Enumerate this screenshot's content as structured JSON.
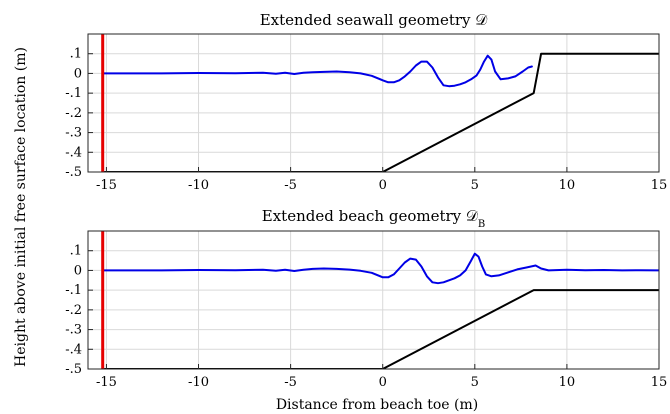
{
  "figure": {
    "ylabel": "Height above initial free surface location (m)",
    "xlabel": "Distance from beach toe (m)"
  },
  "chart_data": [
    {
      "type": "line",
      "title": "Extended seawall geometry 𝒟",
      "xlim": [
        -16,
        15
      ],
      "ylim": [
        -0.5,
        0.2
      ],
      "xticks": [
        -15,
        -10,
        -5,
        0,
        5,
        10,
        15
      ],
      "yticks": [
        0.1,
        0,
        -0.1,
        -0.2,
        -0.3,
        -0.4,
        -0.5
      ],
      "grid": true,
      "series": [
        {
          "color": "#0000e6",
          "x": [
            -15.2,
            -12,
            -10,
            -8,
            -6.5,
            -5.8,
            -5.3,
            -4.8,
            -4.3,
            -3.8,
            -3.2,
            -2.5,
            -1.8,
            -1.2,
            -0.6,
            0,
            0.3,
            0.6,
            0.9,
            1.2,
            1.5,
            1.8,
            2.1,
            2.4,
            2.7,
            3.0,
            3.3,
            3.6,
            3.9,
            4.2,
            4.5,
            4.8,
            5.1,
            5.3,
            5.5,
            5.7,
            5.9,
            6.1,
            6.4,
            6.8,
            7.2,
            7.6,
            7.9,
            8.1
          ],
          "y": [
            0,
            0,
            0.002,
            0.001,
            0.003,
            -0.002,
            0.003,
            -0.003,
            0.003,
            0.006,
            0.008,
            0.01,
            0.006,
            0.0,
            -0.012,
            -0.035,
            -0.045,
            -0.045,
            -0.035,
            -0.015,
            0.01,
            0.04,
            0.06,
            0.06,
            0.03,
            -0.02,
            -0.06,
            -0.065,
            -0.062,
            -0.055,
            -0.045,
            -0.03,
            -0.01,
            0.02,
            0.06,
            0.09,
            0.07,
            0.01,
            -0.03,
            -0.025,
            -0.015,
            0.01,
            0.03,
            0.035
          ]
        },
        {
          "color": "#000000",
          "x": [
            -15.1,
            0,
            8.2,
            8.6,
            15
          ],
          "y": [
            -0.5,
            -0.5,
            -0.1,
            0.1,
            0.1
          ]
        },
        {
          "color": "#e60000",
          "x": [
            -15.2,
            -15.2
          ],
          "y": [
            -0.5,
            0.2
          ]
        }
      ]
    },
    {
      "type": "line",
      "title": "Extended beach geometry 𝒟",
      "title_subscript": "B",
      "xlim": [
        -16,
        15
      ],
      "ylim": [
        -0.5,
        0.2
      ],
      "xticks": [
        -15,
        -10,
        -5,
        0,
        5,
        10,
        15
      ],
      "yticks": [
        0.1,
        0,
        -0.1,
        -0.2,
        -0.3,
        -0.4,
        -0.5
      ],
      "grid": true,
      "series": [
        {
          "color": "#0000e6",
          "x": [
            -15.2,
            -12,
            -10,
            -8,
            -6.5,
            -5.8,
            -5.3,
            -4.8,
            -4.3,
            -3.8,
            -3.2,
            -2.5,
            -1.8,
            -1.2,
            -0.6,
            0,
            0.3,
            0.6,
            0.9,
            1.2,
            1.5,
            1.8,
            2.1,
            2.4,
            2.7,
            3.0,
            3.3,
            3.6,
            3.9,
            4.2,
            4.5,
            4.8,
            5.0,
            5.2,
            5.4,
            5.6,
            5.9,
            6.3,
            6.8,
            7.3,
            7.8,
            8.3,
            8.6,
            9.0,
            10,
            11,
            12,
            13,
            14,
            15
          ],
          "y": [
            0,
            0,
            0.002,
            0.001,
            0.003,
            -0.002,
            0.003,
            -0.003,
            0.003,
            0.008,
            0.01,
            0.008,
            0.004,
            -0.002,
            -0.012,
            -0.035,
            -0.035,
            -0.02,
            0.01,
            0.04,
            0.06,
            0.055,
            0.02,
            -0.03,
            -0.06,
            -0.065,
            -0.06,
            -0.05,
            -0.04,
            -0.025,
            0.0,
            0.05,
            0.085,
            0.07,
            0.02,
            -0.02,
            -0.03,
            -0.025,
            -0.01,
            0.005,
            0.015,
            0.025,
            0.01,
            0.0,
            0.003,
            0.001,
            0.002,
            0.0,
            0.001,
            0.0
          ]
        },
        {
          "color": "#000000",
          "x": [
            -15.1,
            0,
            8.2,
            15
          ],
          "y": [
            -0.5,
            -0.5,
            -0.1,
            -0.1
          ]
        },
        {
          "color": "#e60000",
          "x": [
            -15.2,
            -15.2
          ],
          "y": [
            -0.5,
            0.2
          ]
        }
      ]
    }
  ]
}
